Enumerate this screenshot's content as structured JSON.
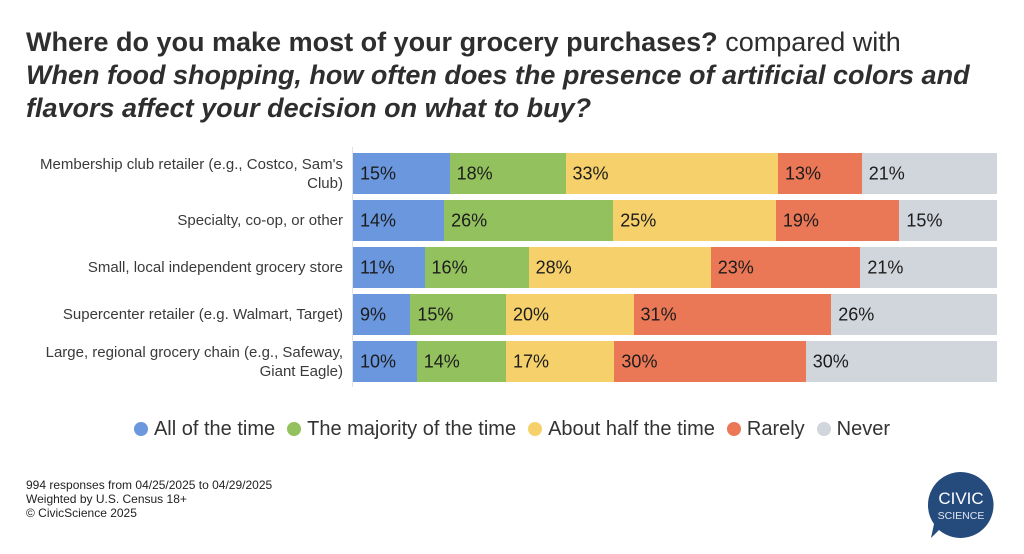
{
  "chart_data": {
    "type": "bar",
    "orientation": "horizontal-stacked-100",
    "title_part1": "Where do you make most of your grocery purchases?",
    "title_part2": "compared with",
    "title_part3": "When food shopping, how often does the presence of artificial colors and flavors affect your decision on what to buy?",
    "categories": [
      "Membership club retailer (e.g., Costco, Sam's Club)",
      "Specialty, co-op, or other",
      "Small, local independent grocery store",
      "Supercenter retailer (e.g. Walmart, Target)",
      "Large, regional grocery chain (e.g., Safeway, Giant Eagle)"
    ],
    "series": [
      {
        "name": "All of the time",
        "color": "#6a97de",
        "values": [
          15,
          14,
          11,
          9,
          10
        ]
      },
      {
        "name": "The majority of the time",
        "color": "#93c15e",
        "values": [
          18,
          26,
          16,
          15,
          14
        ]
      },
      {
        "name": "About half the time",
        "color": "#f6d06a",
        "values": [
          33,
          25,
          28,
          20,
          17
        ]
      },
      {
        "name": "Rarely",
        "color": "#ea7756",
        "values": [
          13,
          19,
          23,
          31,
          30
        ]
      },
      {
        "name": "Never",
        "color": "#d1d5dc",
        "values": [
          21,
          15,
          21,
          26,
          30
        ]
      }
    ],
    "value_suffix": "%",
    "legend_position": "bottom"
  },
  "footer": {
    "line1": "994 responses from 04/25/2025 to 04/29/2025",
    "line2": "Weighted by U.S. Census 18+",
    "line3": "© CivicScience 2025"
  },
  "logo": {
    "top": "CIVIC",
    "bottom": "SCIENCE",
    "color": "#254a7c"
  }
}
